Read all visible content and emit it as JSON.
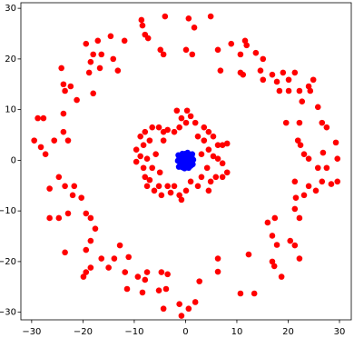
{
  "chart_data": {
    "type": "scatter",
    "xlim": [
      -32.1,
      32.3
    ],
    "ylim": [
      -31.5,
      31.1
    ],
    "xticks": [
      {
        "value": -30,
        "label": "−30"
      },
      {
        "value": -20,
        "label": "−20"
      },
      {
        "value": -10,
        "label": "−10"
      },
      0,
      10,
      20,
      30
    ],
    "yticks": [
      {
        "value": -30,
        "label": "−30"
      },
      {
        "value": -20,
        "label": "−20"
      },
      {
        "value": -10,
        "label": "−10"
      },
      0,
      10,
      20,
      30
    ],
    "grid": false,
    "series": [
      {
        "color": "#ff0000",
        "x": [
          -8.6,
          -8.4,
          -4.0,
          0.6,
          1.7,
          4.9,
          -7.9,
          -7.3,
          -4.9,
          -4.3,
          0.1,
          1.3,
          6.3,
          8.9,
          11.6,
          11.9,
          10.7,
          13.7,
          15.1,
          6.8,
          10.7,
          11.2,
          14.6,
          15.1,
          16.9,
          17.8,
          19.0,
          20.1,
          21.3,
          22.2,
          24.0,
          24.9,
          24.3,
          18.3,
          20.1,
          22.7,
          25.8,
          26.6,
          27.5,
          22.2,
          19.6,
          21.9,
          22.4,
          23.1,
          24.0,
          26.8,
          29.3,
          29.6,
          27.5,
          25.8,
          26.6,
          28.4,
          29.6,
          24.0,
          25.4,
          23.1,
          21.5,
          21.3,
          22.2,
          21.3,
          17.4,
          16.0,
          16.9,
          17.8,
          16.9,
          17.3,
          20.4,
          21.3,
          22.2,
          18.7,
          12.3,
          10.7,
          13.4,
          6.3,
          6.3,
          2.7,
          1.9,
          0.6,
          -1.2,
          -0.8,
          -4.3,
          -5.2,
          -3.8,
          -3.5,
          -4.7,
          -7.5,
          -7.9,
          -8.4,
          -9.3,
          -11.4,
          -11.8,
          -11.1,
          -12.8,
          -13.9,
          -15.0,
          -16.4,
          -18.5,
          -19.4,
          -19.9,
          -19.4,
          -18.5,
          -17.6,
          -18.5,
          -19.4,
          -20.3,
          -22.0,
          -21.7,
          -23.5,
          -24.7,
          -26.5,
          -26.5,
          -24.7,
          -22.9,
          -23.5,
          -27.3,
          -25.6,
          -29.5,
          -28.8,
          -27.7,
          -28.2,
          -23.8,
          -22.9,
          -23.8,
          -21.2,
          -23.5,
          -24.2,
          -23.8,
          -22.4,
          -18.0,
          -18.8,
          -18.5,
          -16.7,
          -18.0,
          -19.4,
          -17.1,
          -14.6,
          -14.1,
          -13.2,
          -11.9,
          -16.4,
          -1.7,
          -0.8,
          0.3,
          1.0,
          0.1,
          -1.2,
          -2.2,
          -3.5,
          -4.3,
          -5.2,
          -6.5,
          -7.9,
          -8.8,
          -7.0,
          -8.2,
          -9.6,
          -8.8,
          -9.6,
          -7.5,
          -8.2,
          -7.9,
          -7.0,
          -7.5,
          -6.1,
          -5.2,
          -4.7,
          -3.5,
          -2.2,
          -2.9,
          -1.2,
          -0.8,
          0.1,
          1.0,
          2.4,
          3.1,
          4.5,
          4.9,
          5.9,
          7.2,
          8.1,
          7.2,
          6.3,
          5.4,
          6.3,
          7.2,
          8.1,
          5.4,
          4.5,
          3.6,
          1.9,
          3.6,
          4.5,
          -4.3,
          -5.8,
          -6.5,
          -5.0,
          4.2,
          3.1,
          2.4
        ],
        "values": [
          27.7,
          26.6,
          28.4,
          28.0,
          26.2,
          28.4,
          24.8,
          24.1,
          21.8,
          20.9,
          21.8,
          20.9,
          21.8,
          23.0,
          23.6,
          22.7,
          20.9,
          21.2,
          20.0,
          17.7,
          17.3,
          16.9,
          17.7,
          15.9,
          16.9,
          15.5,
          17.3,
          15.9,
          17.3,
          13.7,
          14.6,
          15.9,
          13.7,
          13.7,
          13.7,
          11.6,
          10.5,
          7.4,
          6.5,
          7.4,
          7.4,
          3.9,
          3.0,
          1.2,
          0.3,
          1.5,
          3.5,
          0.3,
          -1.5,
          -1.5,
          -4.2,
          -4.7,
          -4.2,
          -5.1,
          -6.0,
          -6.9,
          -7.4,
          -9.6,
          -11.4,
          -4.2,
          -11.4,
          -12.3,
          -14.9,
          -16.7,
          -20.0,
          -20.9,
          -15.9,
          -16.8,
          -19.4,
          -23.0,
          -18.6,
          -26.3,
          -26.3,
          -19.4,
          -22.0,
          -23.9,
          -28.0,
          -29.3,
          -28.4,
          -30.7,
          -29.3,
          -25.7,
          -25.4,
          -22.5,
          -22.1,
          -22.1,
          -23.6,
          -26.1,
          -23.0,
          -25.4,
          -22.1,
          -19.1,
          -16.8,
          -19.4,
          -21.2,
          -19.4,
          -21.2,
          -22.1,
          -23.0,
          -17.7,
          -15.9,
          -13.5,
          -11.4,
          -10.5,
          -7.4,
          -6.9,
          -5.1,
          -5.1,
          -3.3,
          -5.6,
          -11.4,
          -11.4,
          -10.5,
          -18.2,
          1.2,
          3.9,
          3.9,
          8.3,
          8.3,
          2.6,
          5.6,
          3.9,
          9.2,
          11.9,
          13.7,
          18.2,
          15.0,
          14.6,
          13.2,
          17.3,
          19.4,
          18.2,
          20.9,
          23.0,
          23.6,
          24.5,
          20.0,
          17.7,
          23.6,
          20.9,
          9.8,
          8.3,
          9.8,
          8.7,
          7.4,
          6.5,
          5.6,
          6.0,
          5.6,
          6.5,
          6.5,
          5.6,
          4.7,
          3.9,
          3.0,
          2.1,
          0.8,
          -0.3,
          0.3,
          -1.5,
          -3.3,
          -3.9,
          -5.1,
          -6.0,
          -5.1,
          -6.9,
          -5.1,
          -5.1,
          -6.4,
          -6.9,
          -7.8,
          -6.0,
          -4.2,
          -5.1,
          -3.3,
          -6.0,
          -4.2,
          -3.3,
          -3.3,
          -2.4,
          -0.6,
          0.3,
          0.8,
          3.0,
          3.0,
          3.3,
          4.7,
          5.6,
          6.5,
          7.4,
          3.9,
          2.1,
          3.9,
          1.2,
          -1.5,
          -2.4,
          -1.5,
          1.2,
          4.7
        ]
      },
      {
        "color": "#0000ff",
        "x": [
          0,
          0.5,
          -0.5,
          0.8,
          -0.8,
          0.2,
          -0.3,
          1.2,
          -1.2,
          1.0,
          -1.1,
          0.4,
          -0.6,
          0.6,
          -0.2,
          1.5,
          -1.5,
          1.3,
          -1.4,
          0.1,
          -0.1,
          0.9,
          -0.9,
          0.3,
          -0.7,
          1.1,
          -1.0,
          0.0,
          0.2,
          -0.4,
          0.7,
          -0.6,
          1.4,
          -1.3
        ],
        "values": [
          0,
          0.3,
          0.2,
          -0.4,
          -0.3,
          1.0,
          -1.0,
          0.6,
          0.5,
          -1.1,
          -1.0,
          1.5,
          1.3,
          -1.5,
          -1.6,
          0.1,
          -0.1,
          1.2,
          1.0,
          0.6,
          -0.5,
          0.9,
          0.8,
          -0.8,
          -0.7,
          -0.2,
          -0.2,
          1.3,
          -1.2,
          0.9,
          0.1,
          -1.4,
          -0.8,
          -1.3
        ]
      }
    ]
  }
}
